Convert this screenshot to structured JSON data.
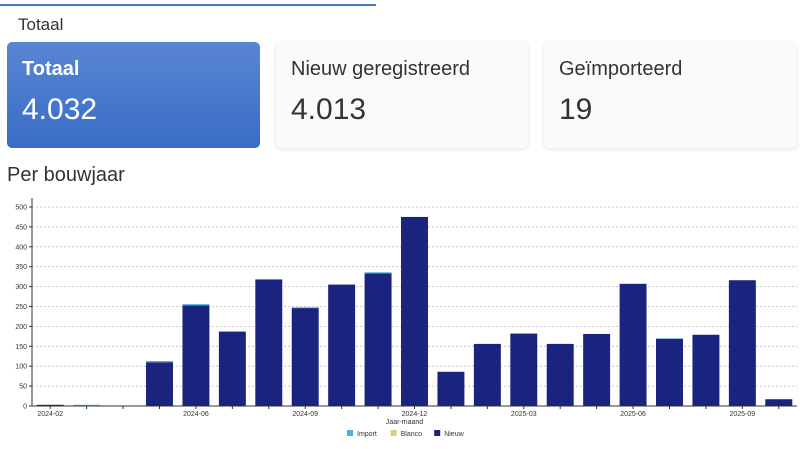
{
  "section": {
    "title": "Totaal"
  },
  "cards": [
    {
      "label": "Totaal",
      "value": "4.032"
    },
    {
      "label": "Nieuw geregistreerd",
      "value": "4.013"
    },
    {
      "label": "Geïmporteerd",
      "value": "19"
    }
  ],
  "chart_title": "Per bouwjaar",
  "chart_data": {
    "type": "bar",
    "stacked": true,
    "xlabel": "Jaar-maand",
    "ylabel": "",
    "ylim": [
      0,
      500
    ],
    "yticks": [
      0,
      50,
      100,
      150,
      200,
      250,
      300,
      350,
      400,
      450,
      500
    ],
    "grid": true,
    "legend": "bottom",
    "categories": [
      "2024-02",
      "2024-03",
      "2024-04",
      "2024-05",
      "2024-06",
      "2024-07",
      "2024-08",
      "2024-09",
      "2024-10",
      "2024-11",
      "2024-12",
      "2025-01",
      "2025-02",
      "2025-03",
      "2025-04",
      "2025-05",
      "2025-06",
      "2025-07",
      "2025-08",
      "2025-09",
      "2025-10"
    ],
    "xtick_labels": [
      "2024-02",
      "2024-06",
      "2024-09",
      "2024-12",
      "2025-03",
      "2025-06",
      "2025-09"
    ],
    "series": [
      {
        "name": "Nieuw",
        "color": "#1a237e",
        "values": [
          3,
          1,
          0,
          110,
          253,
          187,
          318,
          246,
          305,
          333,
          475,
          86,
          156,
          182,
          156,
          181,
          307,
          169,
          179,
          316,
          17
        ]
      },
      {
        "name": "Blanco",
        "color": "#e0cf7a",
        "values": [
          0,
          0,
          0,
          0,
          0,
          0,
          0,
          0,
          0,
          0,
          0,
          0,
          0,
          0,
          0,
          0,
          0,
          0,
          0,
          0,
          0
        ]
      },
      {
        "name": "Import",
        "color": "#4bb3d6",
        "values": [
          0,
          2,
          0,
          3,
          3,
          0,
          0,
          2,
          0,
          3,
          0,
          0,
          0,
          0,
          0,
          0,
          0,
          1,
          0,
          0,
          0
        ]
      }
    ]
  }
}
